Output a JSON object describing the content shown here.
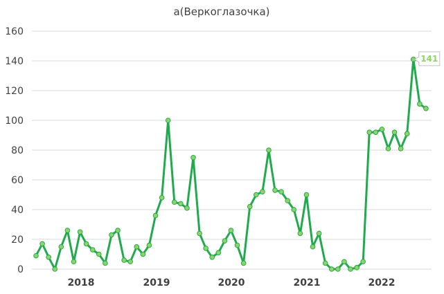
{
  "chart_data": {
    "type": "line",
    "title": "а(Веркоглазочка)",
    "xlabel": "",
    "ylabel": "",
    "ylim": [
      0,
      160
    ],
    "yticks": [
      0,
      20,
      40,
      60,
      80,
      100,
      120,
      140,
      160
    ],
    "xtick_labels": [
      "2018",
      "2019",
      "2020",
      "2021",
      "2022"
    ],
    "grid": "horizontal",
    "legend": "none",
    "line_color": "#1faa4b",
    "marker_color": "#8fd46a",
    "series": [
      {
        "values": [
          9,
          17,
          8,
          0,
          15,
          26,
          5,
          25,
          17,
          13,
          10,
          4,
          23,
          26,
          6,
          5,
          15,
          10,
          16,
          36,
          48,
          100,
          45,
          44,
          41,
          75,
          24,
          14,
          8,
          11,
          19,
          26,
          16,
          4,
          42,
          50,
          52,
          80,
          53,
          52,
          46,
          40,
          24,
          50,
          15,
          24,
          4,
          0,
          0,
          5,
          0,
          1,
          5,
          92,
          92,
          94,
          81,
          92,
          81,
          91,
          141,
          111,
          108
        ]
      }
    ],
    "annotations": [
      {
        "text": "141"
      }
    ]
  }
}
